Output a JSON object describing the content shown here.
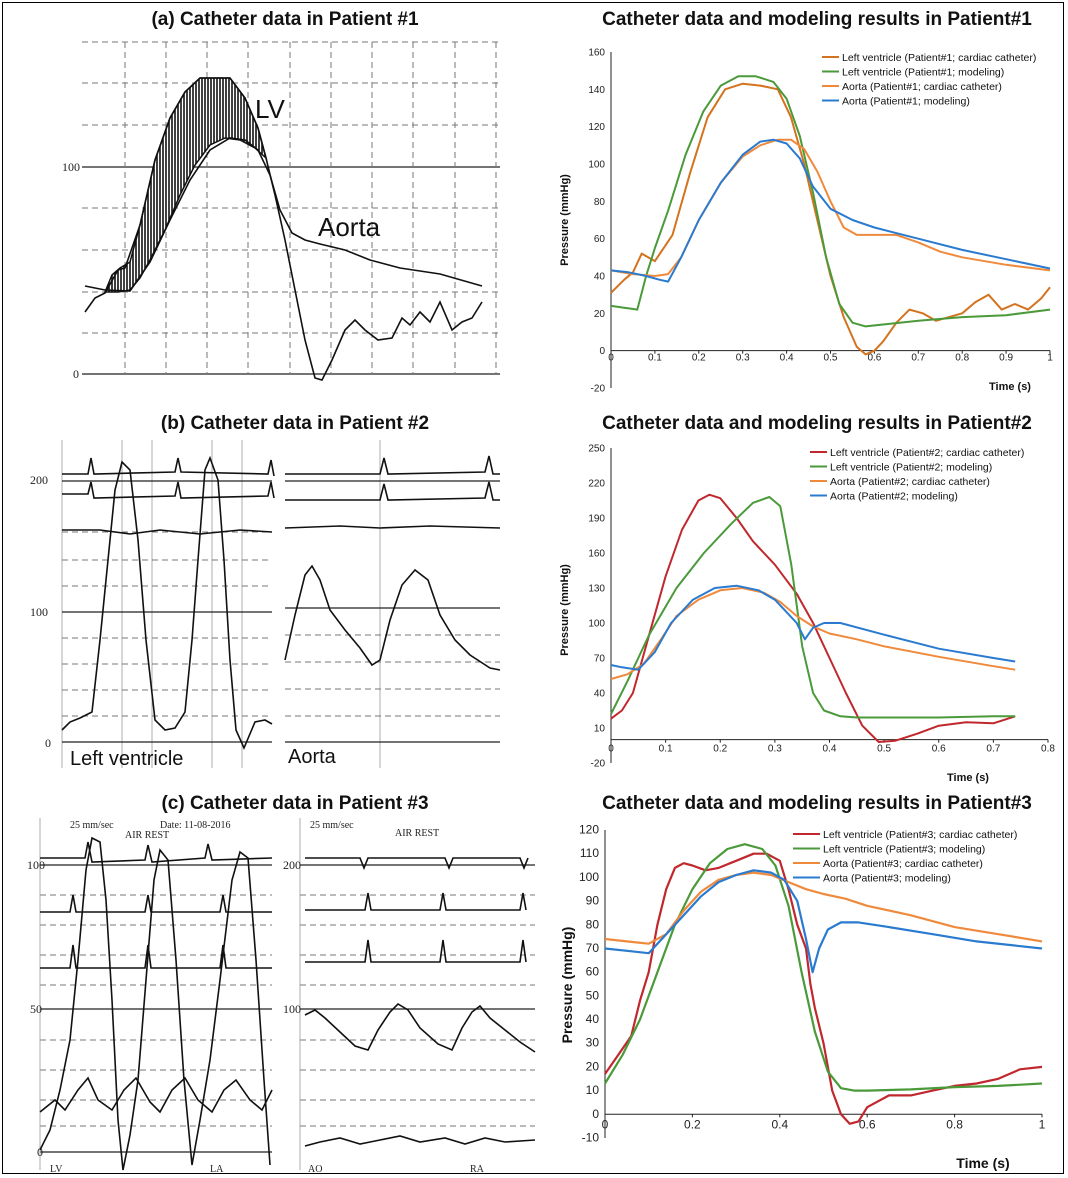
{
  "panels_left": [
    {
      "title": "(a) Catheter data in Patient #1",
      "ticks": [
        "100",
        "0"
      ],
      "labels": [
        "LV",
        "Aorta"
      ]
    },
    {
      "title": "(b) Catheter data in Patient #2",
      "ticks": [
        "200",
        "100",
        "0"
      ],
      "labels": [
        "Left ventricle",
        "Aorta"
      ]
    },
    {
      "title": "(c) Catheter data in Patient #3",
      "ticks_left": [
        "100",
        "50",
        "0"
      ],
      "ticks_right": [
        "200",
        "100"
      ],
      "header_left": [
        "25 mm/sec",
        "Date: 11-08-2016",
        "AIR REST"
      ],
      "header_right": [
        "25 mm/sec",
        "AIR REST"
      ],
      "bottom_left": [
        "LV",
        "LA"
      ],
      "bottom_right": [
        "AO",
        "RA"
      ]
    }
  ],
  "chart_data": [
    {
      "type": "line",
      "title": "Catheter data and modeling results in Patient#1",
      "xlabel": "Time (s)",
      "ylabel": "Pressure (mmHg)",
      "xlim": [
        0,
        1
      ],
      "ylim": [
        -20,
        160
      ],
      "xticks": [
        "0",
        "0.1",
        "0.2",
        "0.3",
        "0.4",
        "0.5",
        "0.6",
        "0.7",
        "0.8",
        "0.9",
        "1"
      ],
      "yticks": [
        "-20",
        "0",
        "20",
        "40",
        "60",
        "80",
        "100",
        "120",
        "140",
        "160"
      ],
      "legend_position": "top-right",
      "series": [
        {
          "name": "Left ventricle (Patient#1; cardiac catheter)",
          "color": "#d4731f",
          "x": [
            0,
            0.03,
            0.05,
            0.07,
            0.1,
            0.14,
            0.18,
            0.22,
            0.26,
            0.3,
            0.34,
            0.38,
            0.41,
            0.44,
            0.47,
            0.5,
            0.53,
            0.56,
            0.58,
            0.6,
            0.62,
            0.65,
            0.68,
            0.71,
            0.74,
            0.77,
            0.8,
            0.83,
            0.86,
            0.89,
            0.92,
            0.95,
            0.98,
            1.0
          ],
          "y": [
            31,
            38,
            42,
            52,
            48,
            62,
            95,
            125,
            140,
            143,
            142,
            140,
            125,
            100,
            70,
            40,
            18,
            2,
            -2,
            0,
            5,
            15,
            22,
            20,
            16,
            18,
            20,
            26,
            30,
            22,
            25,
            22,
            28,
            34
          ]
        },
        {
          "name": "Left ventricle (Patient#1; modeling)",
          "color": "#4a9a3a",
          "x": [
            0,
            0.03,
            0.06,
            0.08,
            0.1,
            0.13,
            0.17,
            0.21,
            0.25,
            0.29,
            0.33,
            0.37,
            0.4,
            0.43,
            0.46,
            0.49,
            0.52,
            0.55,
            0.58,
            0.62,
            0.7,
            0.8,
            0.9,
            1.0
          ],
          "y": [
            24,
            23,
            22,
            40,
            55,
            75,
            105,
            128,
            142,
            147,
            147,
            144,
            135,
            115,
            85,
            50,
            25,
            15,
            13,
            14,
            16,
            18,
            19,
            22
          ]
        },
        {
          "name": "Aorta (Patient#1; cardiac catheter)",
          "color": "#ef8a3c",
          "x": [
            0,
            0.05,
            0.1,
            0.13,
            0.16,
            0.2,
            0.25,
            0.3,
            0.34,
            0.38,
            0.41,
            0.44,
            0.47,
            0.5,
            0.53,
            0.56,
            0.6,
            0.65,
            0.7,
            0.75,
            0.8,
            0.9,
            1.0
          ],
          "y": [
            43,
            41,
            40,
            41,
            50,
            70,
            90,
            104,
            110,
            113,
            113,
            108,
            96,
            80,
            66,
            62,
            62,
            62,
            58,
            53,
            50,
            46,
            43
          ]
        },
        {
          "name": "Aorta (Patient#1; modeling)",
          "color": "#2a7bd0",
          "x": [
            0,
            0.04,
            0.08,
            0.11,
            0.13,
            0.16,
            0.2,
            0.25,
            0.3,
            0.34,
            0.37,
            0.4,
            0.43,
            0.46,
            0.5,
            0.55,
            0.6,
            0.7,
            0.8,
            0.9,
            1.0
          ],
          "y": [
            43,
            42,
            40,
            38,
            37,
            50,
            70,
            90,
            105,
            112,
            113,
            111,
            103,
            88,
            76,
            70,
            66,
            60,
            54,
            49,
            44
          ]
        }
      ]
    },
    {
      "type": "line",
      "title": "Catheter data and modeling results in Patient#2",
      "xlabel": "Time (s)",
      "ylabel": "Pressure (mmHg)",
      "xlim": [
        0,
        0.8
      ],
      "ylim": [
        -20,
        250
      ],
      "xticks": [
        "0",
        "0.1",
        "0.2",
        "0.3",
        "0.4",
        "0.5",
        "0.6",
        "0.7",
        "0.8"
      ],
      "yticks": [
        "-20",
        "10",
        "40",
        "70",
        "100",
        "130",
        "160",
        "190",
        "220",
        "250"
      ],
      "legend_position": "top-right",
      "series": [
        {
          "name": "Left ventricle (Patient#2; cardiac catheter)",
          "color": "#c0282d",
          "x": [
            0,
            0.02,
            0.04,
            0.07,
            0.1,
            0.13,
            0.16,
            0.18,
            0.2,
            0.23,
            0.26,
            0.3,
            0.34,
            0.37,
            0.4,
            0.43,
            0.46,
            0.49,
            0.52,
            0.56,
            0.6,
            0.65,
            0.7,
            0.74
          ],
          "y": [
            18,
            25,
            40,
            90,
            140,
            180,
            205,
            210,
            207,
            190,
            170,
            150,
            125,
            100,
            70,
            40,
            12,
            -2,
            -1,
            5,
            12,
            15,
            14,
            20
          ]
        },
        {
          "name": "Left ventricle (Patient#2; modeling)",
          "color": "#4a9a3a",
          "x": [
            0,
            0.03,
            0.07,
            0.12,
            0.17,
            0.22,
            0.26,
            0.29,
            0.31,
            0.33,
            0.35,
            0.37,
            0.39,
            0.42,
            0.45,
            0.5,
            0.6,
            0.7,
            0.74
          ],
          "y": [
            22,
            50,
            90,
            130,
            160,
            185,
            203,
            208,
            200,
            150,
            80,
            40,
            25,
            20,
            19,
            19,
            19,
            20,
            20
          ]
        },
        {
          "name": "Aorta (Patient#2; cardiac catheter)",
          "color": "#ef8a3c",
          "x": [
            0,
            0.03,
            0.06,
            0.09,
            0.12,
            0.16,
            0.2,
            0.24,
            0.28,
            0.31,
            0.34,
            0.37,
            0.4,
            0.45,
            0.5,
            0.6,
            0.7,
            0.74
          ],
          "y": [
            52,
            56,
            65,
            85,
            106,
            120,
            128,
            130,
            126,
            118,
            106,
            97,
            91,
            86,
            80,
            71,
            63,
            60
          ]
        },
        {
          "name": "Aorta (Patient#2; modeling)",
          "color": "#2a7bd0",
          "x": [
            0,
            0.02,
            0.05,
            0.08,
            0.11,
            0.15,
            0.19,
            0.23,
            0.27,
            0.3,
            0.32,
            0.34,
            0.355,
            0.37,
            0.39,
            0.42,
            0.5,
            0.6,
            0.7,
            0.74
          ],
          "y": [
            64,
            62,
            60,
            75,
            100,
            120,
            130,
            132,
            128,
            120,
            110,
            100,
            86,
            96,
            100,
            100,
            90,
            78,
            70,
            67
          ]
        }
      ]
    },
    {
      "type": "line",
      "title": "Catheter data and modeling results in Patient#3",
      "xlabel": "Time (s)",
      "ylabel": "Pressure (mmHg)",
      "xlim": [
        0,
        1
      ],
      "ylim": [
        -10,
        120
      ],
      "xticks": [
        "0",
        "0.2",
        "0.4",
        "0.6",
        "0.8",
        "1"
      ],
      "yticks": [
        "-10",
        "0",
        "10",
        "20",
        "30",
        "40",
        "50",
        "60",
        "70",
        "80",
        "90",
        "100",
        "110",
        "120"
      ],
      "legend_position": "top-right",
      "series": [
        {
          "name": "Left ventricle (Patient#3; cardiac catheter)",
          "color": "#c0282d",
          "x": [
            0,
            0.03,
            0.06,
            0.08,
            0.1,
            0.12,
            0.14,
            0.16,
            0.18,
            0.2,
            0.23,
            0.26,
            0.3,
            0.34,
            0.37,
            0.4,
            0.42,
            0.44,
            0.46,
            0.47,
            0.48,
            0.5,
            0.52,
            0.54,
            0.56,
            0.58,
            0.6,
            0.65,
            0.7,
            0.75,
            0.8,
            0.85,
            0.9,
            0.95,
            1.0
          ],
          "y": [
            17,
            25,
            33,
            48,
            60,
            80,
            95,
            104,
            106,
            105,
            103,
            104,
            107,
            110,
            110,
            107,
            95,
            80,
            70,
            55,
            45,
            30,
            10,
            0,
            -4,
            -3,
            3,
            8,
            8,
            10,
            12,
            13,
            15,
            19,
            20
          ]
        },
        {
          "name": "Left ventricle (Patient#3; modeling)",
          "color": "#4a9a3a",
          "x": [
            0,
            0.04,
            0.08,
            0.12,
            0.16,
            0.2,
            0.24,
            0.28,
            0.32,
            0.36,
            0.39,
            0.42,
            0.45,
            0.48,
            0.51,
            0.54,
            0.57,
            0.6,
            0.7,
            0.8,
            0.9,
            1.0
          ],
          "y": [
            13,
            25,
            40,
            60,
            80,
            95,
            106,
            112,
            114,
            112,
            105,
            88,
            60,
            35,
            18,
            11,
            10,
            10,
            10.5,
            11.5,
            12,
            13
          ]
        },
        {
          "name": "Aorta (Patient#3; cardiac catheter)",
          "color": "#ef8a3c",
          "x": [
            0,
            0.05,
            0.1,
            0.14,
            0.18,
            0.22,
            0.26,
            0.3,
            0.34,
            0.38,
            0.42,
            0.46,
            0.5,
            0.55,
            0.6,
            0.7,
            0.8,
            0.9,
            1.0
          ],
          "y": [
            74,
            73,
            72,
            76,
            86,
            94,
            99,
            101,
            102,
            101,
            98,
            95,
            93,
            91,
            88,
            84,
            79,
            76,
            73
          ]
        },
        {
          "name": "Aorta (Patient#3; modeling)",
          "color": "#2a7bd0",
          "x": [
            0,
            0.05,
            0.1,
            0.14,
            0.18,
            0.22,
            0.26,
            0.3,
            0.34,
            0.38,
            0.41,
            0.44,
            0.46,
            0.475,
            0.49,
            0.51,
            0.54,
            0.58,
            0.65,
            0.75,
            0.85,
            1.0
          ],
          "y": [
            70,
            69,
            68,
            76,
            84,
            92,
            98,
            101,
            103,
            102,
            99,
            90,
            74,
            60,
            70,
            78,
            81,
            81,
            79,
            76,
            73,
            70
          ]
        }
      ]
    }
  ]
}
